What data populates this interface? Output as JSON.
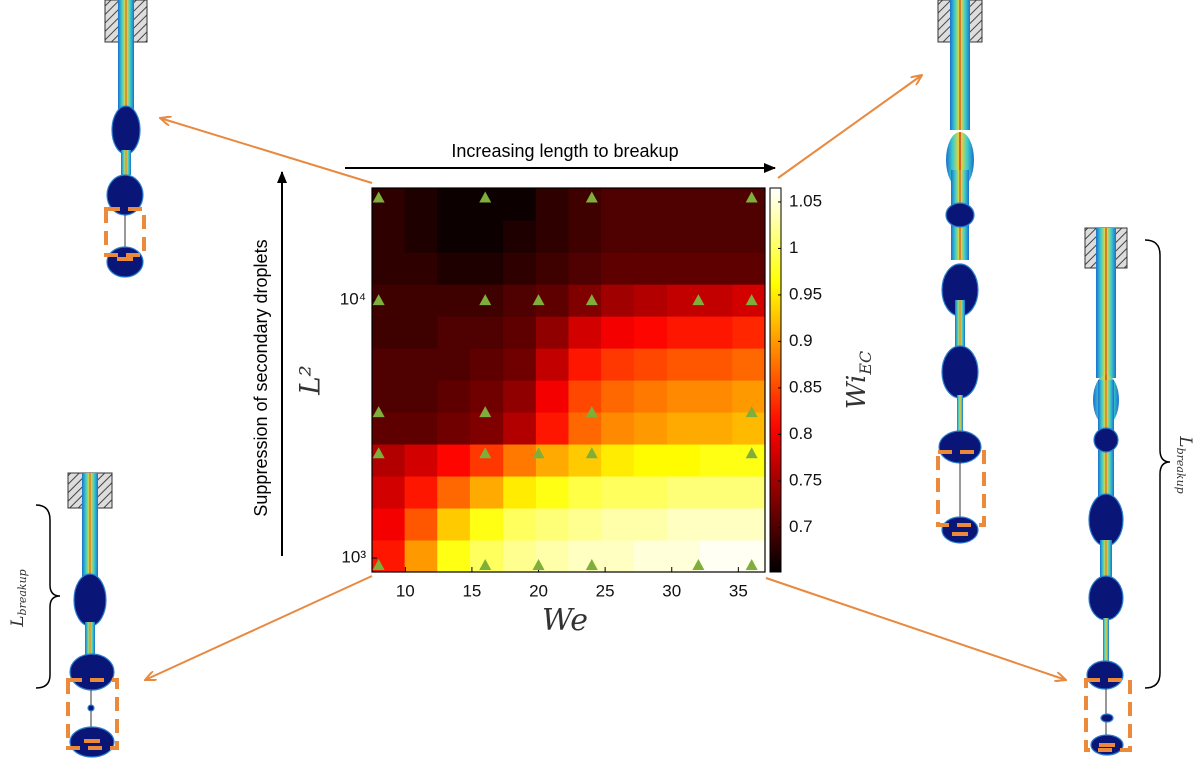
{
  "chart_data": {
    "type": "heatmap",
    "colormap": "hot",
    "x": [
      8.7,
      11.2,
      13.6,
      16.1,
      18.6,
      21.0,
      23.5,
      25.9,
      28.4,
      30.9,
      33.3,
      35.8
    ],
    "y": [
      1019,
      1355,
      1803,
      2399,
      3192,
      4246,
      5649,
      7516,
      10000,
      13300,
      17700,
      23550
    ],
    "z": [
      [
        0.82,
        0.9,
        0.97,
        1.0,
        1.02,
        1.03,
        1.04,
        1.04,
        1.05,
        1.05,
        1.06,
        1.06
      ],
      [
        0.8,
        0.86,
        0.93,
        0.97,
        1.0,
        1.01,
        1.02,
        1.03,
        1.03,
        1.04,
        1.04,
        1.04
      ],
      [
        0.78,
        0.82,
        0.87,
        0.91,
        0.95,
        0.97,
        0.99,
        1.0,
        1.0,
        1.01,
        1.01,
        1.01
      ],
      [
        0.76,
        0.78,
        0.81,
        0.84,
        0.88,
        0.91,
        0.93,
        0.95,
        0.96,
        0.96,
        0.97,
        0.97
      ],
      [
        0.71,
        0.71,
        0.72,
        0.73,
        0.76,
        0.82,
        0.87,
        0.89,
        0.9,
        0.91,
        0.91,
        0.92
      ],
      [
        0.7,
        0.7,
        0.71,
        0.72,
        0.74,
        0.8,
        0.85,
        0.87,
        0.88,
        0.89,
        0.89,
        0.9
      ],
      [
        0.7,
        0.7,
        0.7,
        0.71,
        0.72,
        0.77,
        0.82,
        0.84,
        0.85,
        0.86,
        0.86,
        0.87
      ],
      [
        0.69,
        0.69,
        0.7,
        0.7,
        0.71,
        0.74,
        0.78,
        0.8,
        0.81,
        0.82,
        0.82,
        0.83
      ],
      [
        0.69,
        0.69,
        0.69,
        0.69,
        0.7,
        0.71,
        0.73,
        0.75,
        0.76,
        0.77,
        0.77,
        0.78
      ],
      [
        0.68,
        0.68,
        0.67,
        0.67,
        0.68,
        0.69,
        0.7,
        0.71,
        0.71,
        0.71,
        0.71,
        0.71
      ],
      [
        0.68,
        0.67,
        0.66,
        0.66,
        0.67,
        0.68,
        0.69,
        0.7,
        0.7,
        0.7,
        0.7,
        0.7
      ],
      [
        0.68,
        0.67,
        0.66,
        0.66,
        0.66,
        0.68,
        0.69,
        0.7,
        0.7,
        0.7,
        0.7,
        0.7
      ]
    ],
    "xlim": [
      7.5,
      37
    ],
    "ylim": [
      883,
      27200
    ],
    "yscale": "log",
    "xticks": [
      10,
      15,
      20,
      25,
      30,
      35
    ],
    "yticks": [
      {
        "value": 1000,
        "label": "10³"
      },
      {
        "value": 10000,
        "label": "10⁴"
      }
    ],
    "xlabel": "We",
    "ylabel": "L²",
    "clim": [
      0.652,
      1.065
    ],
    "cticks": [
      0.7,
      0.75,
      0.8,
      0.85,
      0.9,
      0.95,
      1,
      1.05
    ],
    "colorbar_label": {
      "main": "Wi",
      "sub": "EC"
    },
    "points": {
      "color": "#7fae3a",
      "x": [
        8,
        16,
        24,
        36,
        8,
        16,
        20,
        24,
        32,
        36,
        8,
        16,
        24,
        36,
        8,
        16,
        20,
        24,
        36,
        8,
        16,
        20,
        24,
        32,
        36
      ],
      "y": [
        25000,
        25000,
        25000,
        25000,
        10000,
        10000,
        10000,
        10000,
        10000,
        10000,
        3680,
        3680,
        3680,
        3680,
        2550,
        2550,
        2550,
        2550,
        2550,
        940,
        940,
        940,
        940,
        940,
        940
      ]
    }
  },
  "annotations": {
    "top": "Increasing length to breakup",
    "left": "Suppression of secondary droplets",
    "breakup_label": {
      "main": "L",
      "sub": "breakup"
    }
  }
}
